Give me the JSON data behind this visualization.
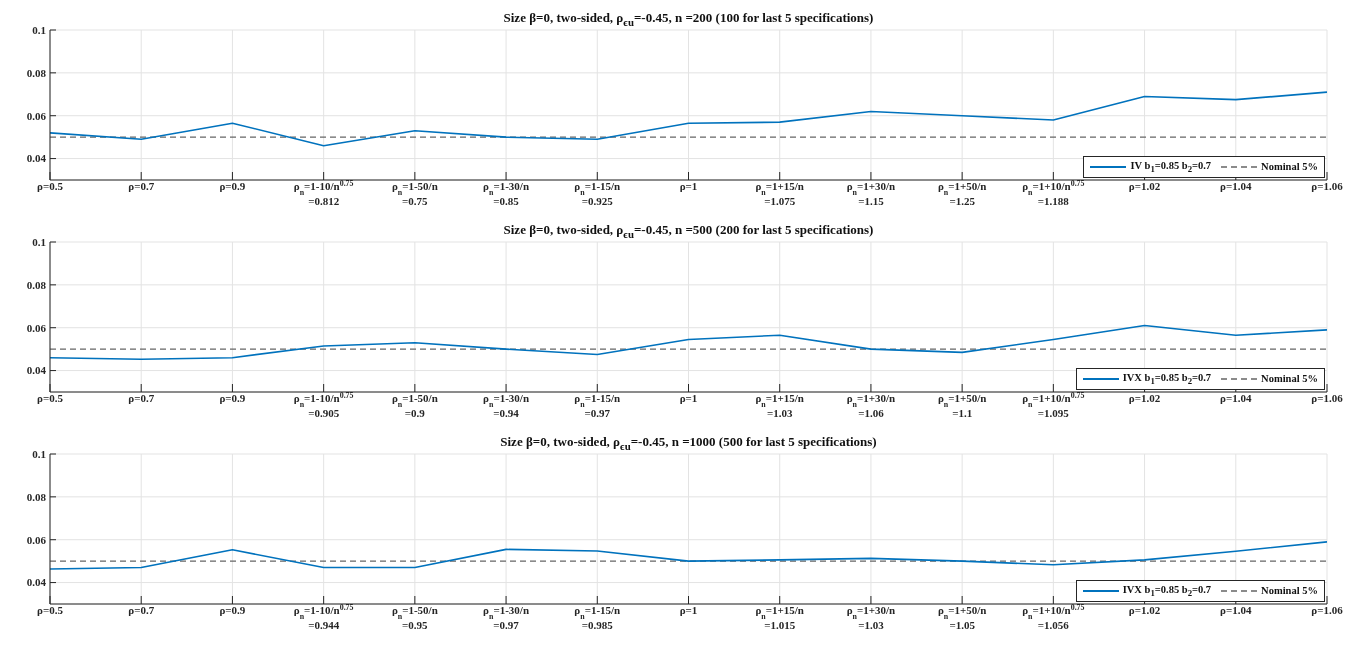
{
  "chart_data": [
    {
      "type": "line",
      "title": "Size β=0, two-sided, ρ$_{ϵu}$=-0.45, n =200 (100 for last 5 specifications)",
      "categories": [
        "ρ=0.5",
        "ρ=0.7",
        "ρ=0.9",
        "ρ$_{n}$=1-10/n$^{0.75}$\n=0.812",
        "ρ$_{n}$=1-50/n\n=0.75",
        "ρ$_{n}$=1-30/n\n=0.85",
        "ρ$_{n}$=1-15/n\n=0.925",
        "ρ=1",
        "ρ$_{n}$=1+15/n\n=1.075",
        "ρ$_{n}$=1+30/n\n=1.15",
        "ρ$_{n}$=1+50/n\n=1.25",
        "ρ$_{n}$=1+10/n$^{0.75}$\n=1.188",
        "ρ=1.02",
        "ρ=1.04",
        "ρ=1.06"
      ],
      "series": [
        {
          "name": "IV b$_{1}$=0.85 b$_{2}$=0.7",
          "color": "#0072bd",
          "values": [
            0.052,
            0.049,
            0.0565,
            0.046,
            0.053,
            0.05,
            0.049,
            0.0565,
            0.057,
            0.062,
            0.06,
            0.058,
            0.069,
            0.0675,
            0.071
          ]
        }
      ],
      "ylim": [
        0.03,
        0.1
      ],
      "yticks": [
        0.04,
        0.06,
        0.08,
        0.1
      ],
      "grid": true,
      "legend": "bottom right",
      "ref_lines": [
        {
          "axis": "y",
          "value": 0.05,
          "label": "Nominal 5%",
          "color": "#666666",
          "line_style": "dashed"
        }
      ]
    },
    {
      "type": "line",
      "title": "Size β=0, two-sided, ρ$_{ϵu}$=-0.45, n =500 (200 for last 5 specifications)",
      "categories": [
        "ρ=0.5",
        "ρ=0.7",
        "ρ=0.9",
        "ρ$_{n}$=1-10/n$^{0.75}$\n=0.905",
        "ρ$_{n}$=1-50/n\n=0.9",
        "ρ$_{n}$=1-30/n\n=0.94",
        "ρ$_{n}$=1-15/n\n=0.97",
        "ρ=1",
        "ρ$_{n}$=1+15/n\n=1.03",
        "ρ$_{n}$=1+30/n\n=1.06",
        "ρ$_{n}$=1+50/n\n=1.1",
        "ρ$_{n}$=1+10/n$^{0.75}$\n=1.095",
        "ρ=1.02",
        "ρ=1.04",
        "ρ=1.06"
      ],
      "series": [
        {
          "name": "IVX b$_{1}$=0.85 b$_{2}$=0.7",
          "color": "#0072bd",
          "values": [
            0.046,
            0.0453,
            0.046,
            0.0515,
            0.053,
            0.05,
            0.0475,
            0.0545,
            0.0565,
            0.05,
            0.0485,
            0.0545,
            0.061,
            0.0565,
            0.059
          ]
        }
      ],
      "ylim": [
        0.03,
        0.1
      ],
      "yticks": [
        0.04,
        0.06,
        0.08,
        0.1
      ],
      "grid": true,
      "legend": "bottom right",
      "ref_lines": [
        {
          "axis": "y",
          "value": 0.05,
          "label": "Nominal 5%",
          "color": "#666666",
          "line_style": "dashed"
        }
      ]
    },
    {
      "type": "line",
      "title": "Size β=0, two-sided, ρ$_{ϵu}$=-0.45, n =1000 (500 for last 5 specifications)",
      "categories": [
        "ρ=0.5",
        "ρ=0.7",
        "ρ=0.9",
        "ρ$_{n}$=1-10/n$^{0.75}$\n=0.944",
        "ρ$_{n}$=1-50/n\n=0.95",
        "ρ$_{n}$=1-30/n\n=0.97",
        "ρ$_{n}$=1-15/n\n=0.985",
        "ρ=1",
        "ρ$_{n}$=1+15/n\n=1.015",
        "ρ$_{n}$=1+30/n\n=1.03",
        "ρ$_{n}$=1+50/n\n=1.05",
        "ρ$_{n}$=1+10/n$^{0.75}$\n=1.056",
        "ρ=1.02",
        "ρ=1.04",
        "ρ=1.06"
      ],
      "series": [
        {
          "name": "IVX b$_{1}$=0.85 b$_{2}$=0.7",
          "color": "#0072bd",
          "values": [
            0.0463,
            0.047,
            0.0553,
            0.047,
            0.047,
            0.0555,
            0.0547,
            0.05,
            0.0506,
            0.0513,
            0.05,
            0.0483,
            0.0506,
            0.0546,
            0.059
          ]
        }
      ],
      "ylim": [
        0.03,
        0.1
      ],
      "yticks": [
        0.04,
        0.06,
        0.08,
        0.1
      ],
      "grid": true,
      "legend": "bottom right",
      "ref_lines": [
        {
          "axis": "y",
          "value": 0.05,
          "label": "Nominal 5%",
          "color": "#666666",
          "line_style": "dashed"
        }
      ]
    }
  ]
}
